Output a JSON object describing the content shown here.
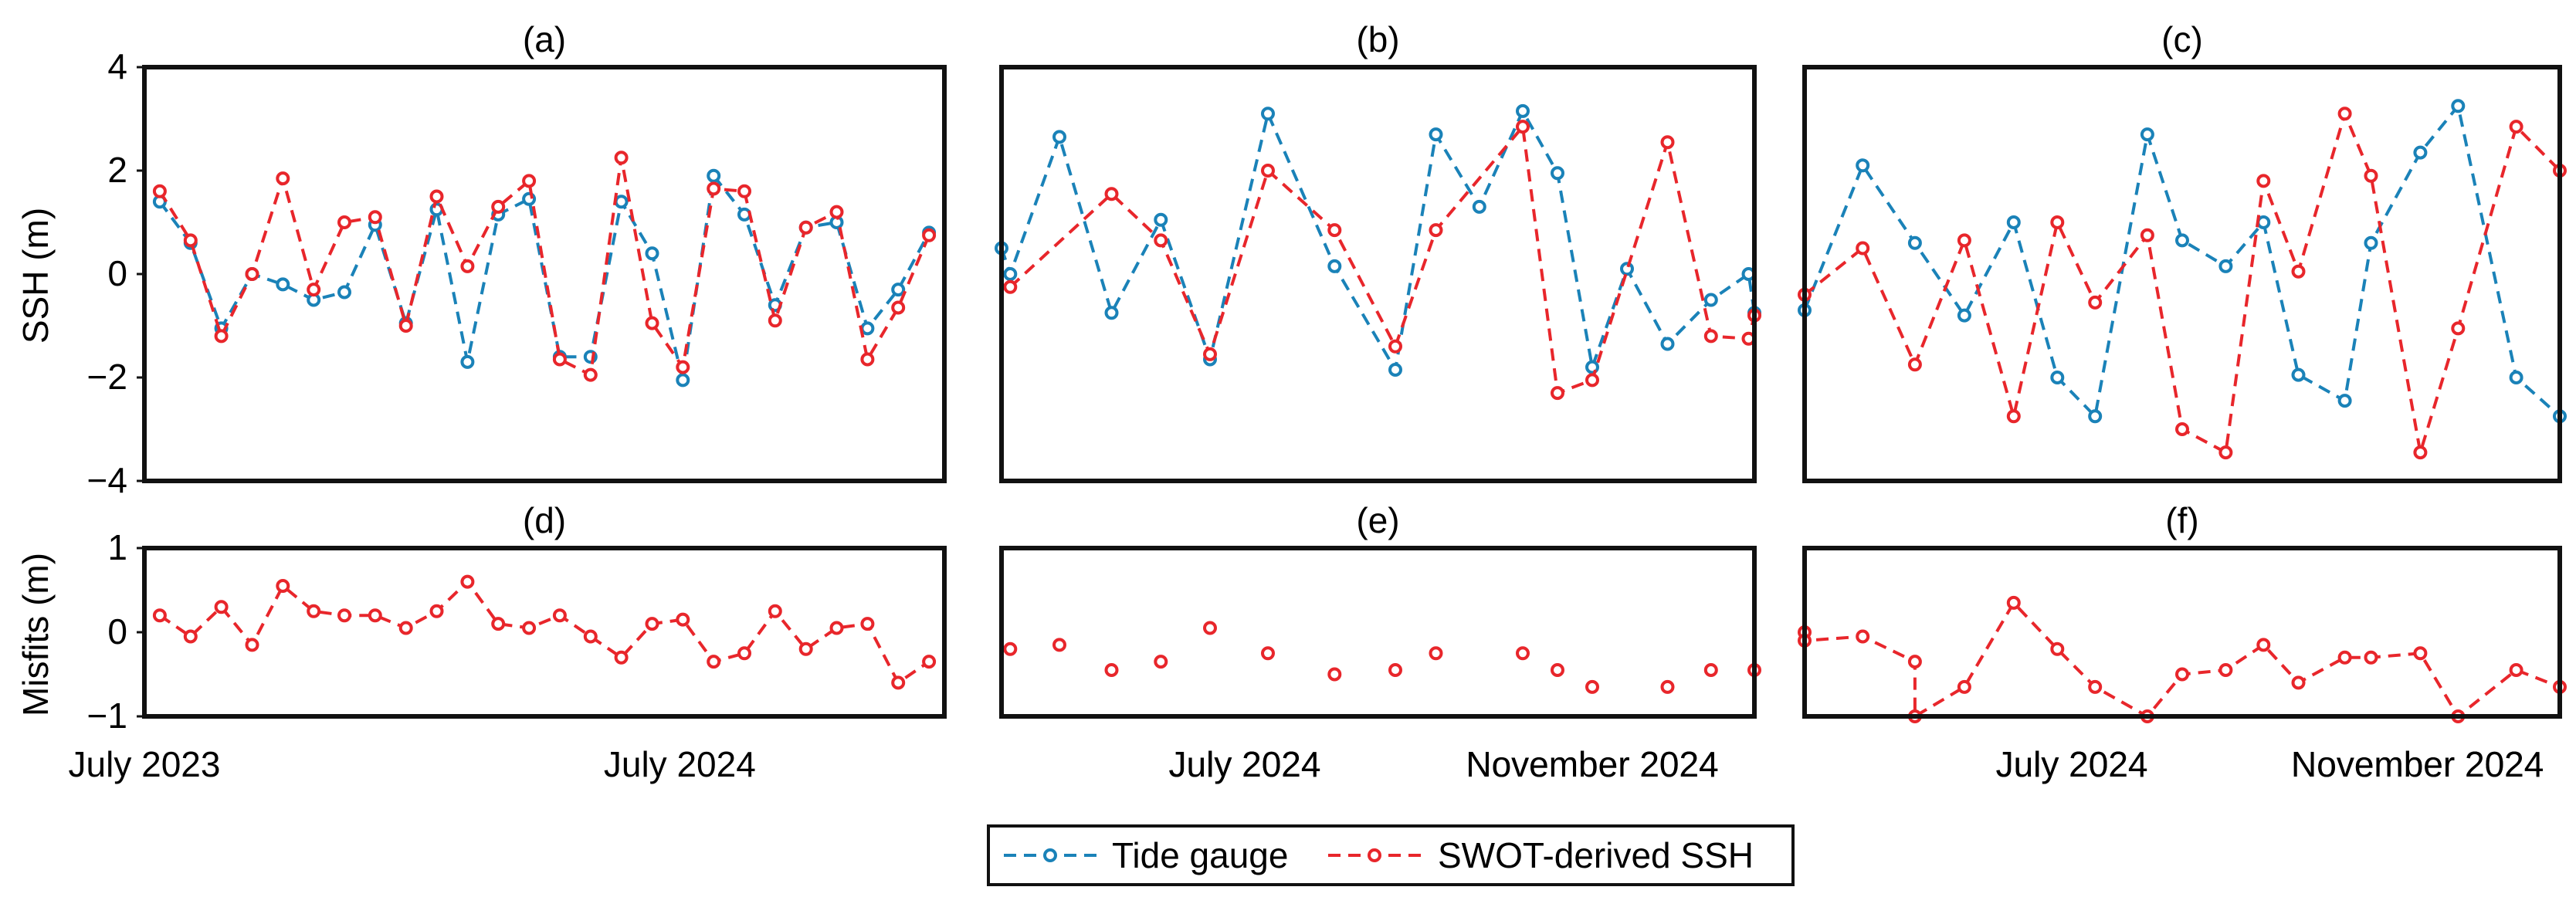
{
  "colors": {
    "tide": "#1a82b8",
    "swot": "#e8262b",
    "frame": "#111111"
  },
  "legend": {
    "tide_label": "Tide gauge",
    "swot_label": "SWOT-derived SSH"
  },
  "y_labels": {
    "ssh": "SSH (m)",
    "misfit": "Misfits (m)"
  },
  "chart_data": [
    {
      "id": "a",
      "title": "(a)",
      "type": "line",
      "ylabel": "SSH (m)",
      "xlim": [
        0,
        26
      ],
      "ylim": [
        -4,
        4
      ],
      "yticks": [
        -4,
        -2,
        0,
        2,
        4
      ],
      "ytick_labels": [
        "−4",
        "−2",
        "0",
        "2",
        "4"
      ],
      "xticks": [],
      "series": [
        {
          "name": "Tide gauge",
          "x": [
            0.5,
            1.5,
            2.5,
            3.5,
            4.5,
            5.5,
            6.5,
            7.5,
            8.5,
            9.5,
            10.5,
            11.5,
            12.5,
            13.5,
            14.5,
            15.5,
            16.5,
            17.5,
            18.5,
            19.5,
            20.5,
            21.5,
            22.5,
            23.5,
            24.5,
            25.5
          ],
          "y": [
            1.4,
            0.6,
            -1.05,
            0.0,
            -0.2,
            -0.5,
            -0.35,
            0.95,
            -0.95,
            1.25,
            -1.7,
            1.15,
            1.45,
            -1.6,
            -1.6,
            1.4,
            0.4,
            -2.05,
            1.9,
            1.15,
            -0.6,
            0.9,
            1.0,
            -1.05,
            -0.3,
            0.8
          ]
        },
        {
          "name": "SWOT-derived SSH",
          "x": [
            0.5,
            1.5,
            2.5,
            3.5,
            4.5,
            5.5,
            6.5,
            7.5,
            8.5,
            9.5,
            10.5,
            11.5,
            12.5,
            13.5,
            14.5,
            15.5,
            16.5,
            17.5,
            18.5,
            19.5,
            20.5,
            21.5,
            22.5,
            23.5,
            24.5,
            25.5
          ],
          "y": [
            1.6,
            0.65,
            -1.2,
            0.0,
            1.85,
            -0.3,
            1.0,
            1.1,
            -1.0,
            1.5,
            0.15,
            1.3,
            1.8,
            -1.65,
            -1.95,
            2.25,
            -0.95,
            -1.8,
            1.65,
            1.6,
            -0.9,
            0.9,
            1.2,
            -1.65,
            -0.65,
            0.75
          ]
        }
      ]
    },
    {
      "id": "b",
      "title": "(b)",
      "type": "line",
      "xlim": [
        0,
        26
      ],
      "ylim": [
        -4,
        4
      ],
      "yticks": [],
      "ytick_labels": [],
      "xticks": [
        8.4,
        20.4
      ],
      "xtick_labels": [
        "July 2024",
        "November 2024"
      ],
      "series": [
        {
          "name": "Tide gauge",
          "x": [
            0,
            0.3,
            2.0,
            3.8,
            5.5,
            7.2,
            9.2,
            11.5,
            13.6,
            15.0,
            16.5,
            18.0,
            19.2,
            20.4,
            21.6,
            23.0,
            24.5,
            25.8,
            26.0
          ],
          "y": [
            0.5,
            0.0,
            2.65,
            -0.75,
            1.05,
            -1.65,
            3.1,
            0.15,
            -1.85,
            2.7,
            1.3,
            3.15,
            1.95,
            -1.8,
            0.1,
            -1.35,
            -0.5,
            0.0,
            -0.75
          ]
        },
        {
          "name": "SWOT-derived SSH",
          "x": [
            0.3,
            3.8,
            5.5,
            7.2,
            9.2,
            11.5,
            13.6,
            15.0,
            18.0,
            19.2,
            20.4,
            23.0,
            24.5,
            25.8,
            26.0
          ],
          "y": [
            -0.25,
            1.55,
            0.65,
            -1.55,
            2.0,
            0.85,
            -1.4,
            0.85,
            2.85,
            -2.3,
            -2.05,
            2.55,
            -1.2,
            -1.25,
            -0.8
          ]
        }
      ]
    },
    {
      "id": "c",
      "title": "(c)",
      "type": "line",
      "xlim": [
        0,
        26
      ],
      "ylim": [
        -4,
        4
      ],
      "yticks": [],
      "ytick_labels": [],
      "xticks": [
        9.2,
        21.1
      ],
      "xtick_labels": [
        "July 2024",
        "November 2024"
      ],
      "series": [
        {
          "name": "Tide gauge",
          "x": [
            0,
            2.0,
            3.8,
            5.5,
            7.2,
            8.7,
            10.0,
            11.8,
            13.0,
            14.5,
            15.8,
            17.0,
            18.6,
            19.5,
            21.2,
            22.5,
            24.5,
            26.0
          ],
          "y": [
            -0.7,
            2.1,
            0.6,
            -0.8,
            1.0,
            -2.0,
            -2.75,
            2.7,
            0.65,
            0.15,
            1.0,
            -1.95,
            -2.45,
            0.6,
            2.35,
            3.25,
            -2.0,
            -2.75
          ]
        },
        {
          "name": "SWOT-derived SSH",
          "x": [
            0,
            2.0,
            3.8,
            5.5,
            7.2,
            8.7,
            10.0,
            11.8,
            13.0,
            14.5,
            15.8,
            17.0,
            18.6,
            19.5,
            21.2,
            22.5,
            24.5,
            26.0
          ],
          "y": [
            -0.4,
            0.5,
            -1.75,
            0.65,
            -2.75,
            1.0,
            -0.55,
            0.75,
            -3.0,
            -3.45,
            1.8,
            0.05,
            3.1,
            1.9,
            -3.45,
            -1.05,
            2.85,
            2.0
          ]
        }
      ]
    },
    {
      "id": "d",
      "title": "(d)",
      "type": "line",
      "ylabel": "Misfits (m)",
      "xlim": [
        0,
        26
      ],
      "ylim": [
        -1,
        1
      ],
      "yticks": [
        -1,
        0,
        1
      ],
      "ytick_labels": [
        "−1",
        "0",
        "1"
      ],
      "xticks": [
        0,
        17.4
      ],
      "xtick_labels": [
        "July 2023",
        "July 2024"
      ],
      "series": [
        {
          "name": "SWOT-derived SSH",
          "x": [
            0.5,
            1.5,
            2.5,
            3.5,
            4.5,
            5.5,
            6.5,
            7.5,
            8.5,
            9.5,
            10.5,
            11.5,
            12.5,
            13.5,
            14.5,
            15.5,
            16.5,
            17.5,
            18.5,
            19.5,
            20.5,
            21.5,
            22.5,
            23.5,
            24.5,
            25.5
          ],
          "y": [
            0.2,
            -0.05,
            0.3,
            -0.15,
            0.55,
            0.25,
            0.2,
            0.2,
            0.05,
            0.25,
            0.6,
            0.1,
            0.05,
            0.2,
            -0.05,
            -0.3,
            0.1,
            0.15,
            -0.35,
            -0.25,
            0.25,
            -0.2,
            0.05,
            0.1,
            -0.6,
            -0.35
          ]
        }
      ]
    },
    {
      "id": "e",
      "title": "(e)",
      "type": "scatter",
      "xlim": [
        0,
        26
      ],
      "ylim": [
        -1,
        1
      ],
      "yticks": [],
      "ytick_labels": [],
      "xticks": [
        8.4,
        20.4
      ],
      "xtick_labels": [
        "July 2024",
        "November 2024"
      ],
      "series": [
        {
          "name": "SWOT-derived SSH",
          "x": [
            0.3,
            2.0,
            3.8,
            5.5,
            7.2,
            9.2,
            11.5,
            13.6,
            15.0,
            18.0,
            19.2,
            20.4,
            23.0,
            24.5,
            26.0
          ],
          "y": [
            -0.2,
            -0.15,
            -0.45,
            -0.35,
            0.05,
            -0.25,
            -0.5,
            -0.45,
            -0.25,
            -0.25,
            -0.45,
            -0.65,
            -0.65,
            -0.45,
            -0.45
          ]
        }
      ]
    },
    {
      "id": "f",
      "title": "(f)",
      "type": "line",
      "xlim": [
        0,
        26
      ],
      "ylim": [
        -1,
        1
      ],
      "yticks": [],
      "ytick_labels": [],
      "xticks": [
        9.2,
        21.1
      ],
      "xtick_labels": [
        "July 2024",
        "November 2024"
      ],
      "series": [
        {
          "name": "SWOT-derived SSH",
          "x": [
            0,
            0,
            2.0,
            3.8,
            3.8,
            5.5,
            7.2,
            8.7,
            10.0,
            11.8,
            13.0,
            14.5,
            15.8,
            17.0,
            18.6,
            19.5,
            21.2,
            22.5,
            24.5,
            26.0
          ],
          "y": [
            0.0,
            -0.1,
            -0.05,
            -0.35,
            -1.0,
            -0.65,
            0.35,
            -0.2,
            -0.65,
            -1.0,
            -0.5,
            -0.45,
            -0.15,
            -0.6,
            -0.3,
            -0.3,
            -0.25,
            -1.0,
            -0.45,
            -0.65
          ]
        }
      ]
    }
  ]
}
